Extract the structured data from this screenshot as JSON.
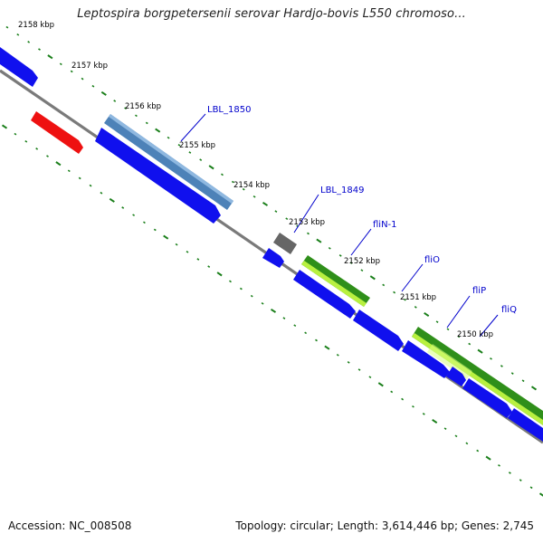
{
  "title": "Leptospira borgpetersenii serovar Hardjo-bovis L550 chromoso...",
  "footer": {
    "accession": "Accession: NC_008508",
    "summary": "Topology: circular; Length: 3,614,446 bp; Genes: 2,745"
  },
  "colors": {
    "backbone": "#7a7a7a",
    "ticks": "#1a7f1a",
    "label_blue": "#0000cc",
    "blue_arrow": "#1010ee",
    "red_arrow": "#ee1111",
    "steel_bar": "#4d82b8",
    "gray_box": "#666666",
    "green_dark": "#2f8f1a",
    "green_light": "#b8f040"
  },
  "kbp_labels": [
    "2158 kbp",
    "2157 kbp",
    "2156 kbp",
    "2155 kbp",
    "2154 kbp",
    "2153 kbp",
    "2152 kbp",
    "2151 kbp",
    "2150 kbp"
  ],
  "gene_labels": [
    "LBL_1850",
    "LBL_1849",
    "fliN-1",
    "fliO",
    "fliP",
    "fliQ"
  ]
}
